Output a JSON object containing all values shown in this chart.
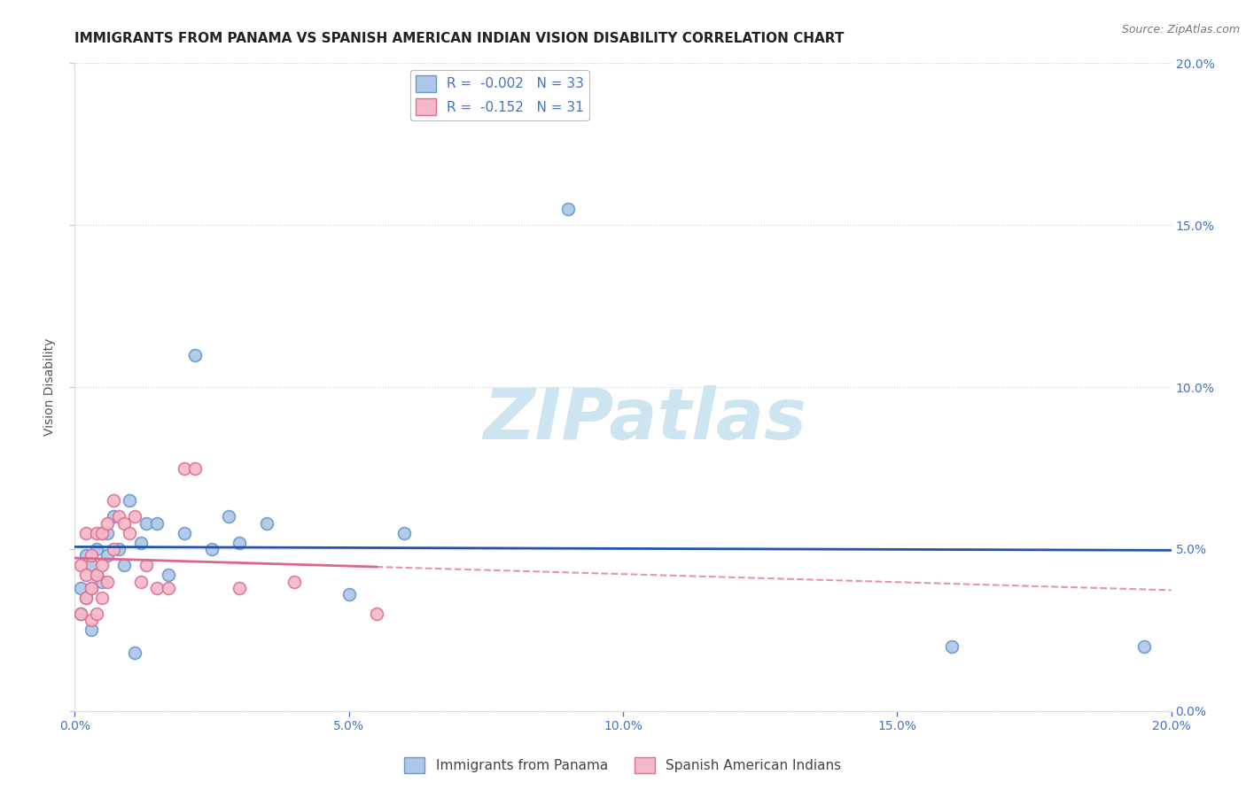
{
  "title": "IMMIGRANTS FROM PANAMA VS SPANISH AMERICAN INDIAN VISION DISABILITY CORRELATION CHART",
  "source": "Source: ZipAtlas.com",
  "ylabel": "Vision Disability",
  "xlim": [
    0.0,
    0.2
  ],
  "ylim": [
    0.0,
    0.2
  ],
  "xticks": [
    0.0,
    0.05,
    0.1,
    0.15,
    0.2
  ],
  "yticks": [
    0.0,
    0.05,
    0.1,
    0.15,
    0.2
  ],
  "xticklabels": [
    "0.0%",
    "5.0%",
    "10.0%",
    "15.0%",
    "20.0%"
  ],
  "left_yticklabels": [
    "",
    "",
    "",
    "",
    ""
  ],
  "right_yticklabels": [
    "0.0%",
    "5.0%",
    "10.0%",
    "15.0%",
    "20.0%"
  ],
  "panama_color": "#aec6e8",
  "panama_edge_color": "#6699cc",
  "spanish_color": "#f4b8c8",
  "spanish_edge_color": "#e07090",
  "panama_R": -0.002,
  "panama_N": 33,
  "spanish_R": -0.152,
  "spanish_N": 31,
  "panama_line_color": "#2255aa",
  "spanish_line_color": "#dd6688",
  "legend_label_panama": "Immigrants from Panama",
  "legend_label_spanish": "Spanish American Indians",
  "panama_x": [
    0.001,
    0.001,
    0.002,
    0.002,
    0.003,
    0.003,
    0.003,
    0.004,
    0.004,
    0.005,
    0.005,
    0.006,
    0.006,
    0.007,
    0.008,
    0.009,
    0.01,
    0.011,
    0.012,
    0.013,
    0.015,
    0.017,
    0.02,
    0.022,
    0.025,
    0.028,
    0.03,
    0.035,
    0.05,
    0.06,
    0.09,
    0.16,
    0.195
  ],
  "panama_y": [
    0.03,
    0.038,
    0.035,
    0.048,
    0.025,
    0.038,
    0.045,
    0.05,
    0.042,
    0.055,
    0.04,
    0.048,
    0.055,
    0.06,
    0.05,
    0.045,
    0.065,
    0.018,
    0.052,
    0.058,
    0.058,
    0.042,
    0.055,
    0.11,
    0.05,
    0.06,
    0.052,
    0.058,
    0.036,
    0.055,
    0.155,
    0.02,
    0.02
  ],
  "spanish_x": [
    0.001,
    0.001,
    0.002,
    0.002,
    0.002,
    0.003,
    0.003,
    0.003,
    0.004,
    0.004,
    0.004,
    0.005,
    0.005,
    0.005,
    0.006,
    0.006,
    0.007,
    0.007,
    0.008,
    0.009,
    0.01,
    0.011,
    0.012,
    0.013,
    0.015,
    0.017,
    0.02,
    0.022,
    0.03,
    0.04,
    0.055
  ],
  "spanish_y": [
    0.03,
    0.045,
    0.035,
    0.042,
    0.055,
    0.028,
    0.038,
    0.048,
    0.03,
    0.042,
    0.055,
    0.035,
    0.045,
    0.055,
    0.04,
    0.058,
    0.065,
    0.05,
    0.06,
    0.058,
    0.055,
    0.06,
    0.04,
    0.045,
    0.038,
    0.038,
    0.075,
    0.075,
    0.038,
    0.04,
    0.03
  ],
  "grid_color": "#cccccc",
  "background_color": "#ffffff",
  "title_fontsize": 11,
  "axis_label_fontsize": 10,
  "tick_fontsize": 10,
  "tick_color": "#4472c4",
  "marker_size": 100,
  "watermark_text": "ZIPatlas",
  "watermark_color": "#cce5f0"
}
